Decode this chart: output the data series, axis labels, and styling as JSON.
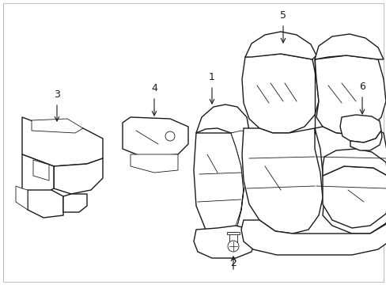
{
  "background_color": "#ffffff",
  "line_color": "#1a1a1a",
  "fig_width": 4.89,
  "fig_height": 3.6,
  "dpi": 100,
  "border_color": "#cccccc"
}
